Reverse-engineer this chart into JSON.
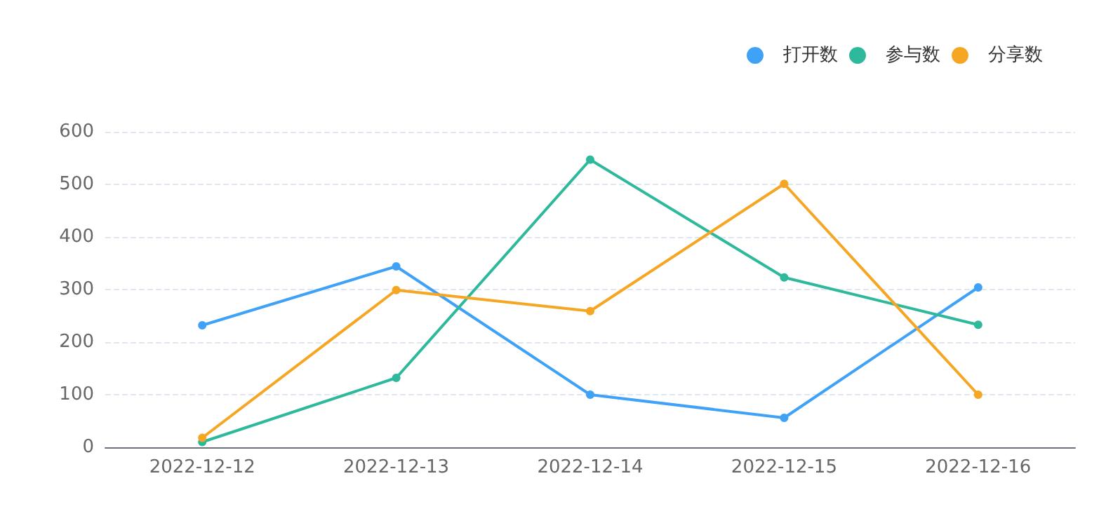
{
  "chart_data": {
    "type": "line",
    "categories": [
      "2022-12-12",
      "2022-12-13",
      "2022-12-14",
      "2022-12-15",
      "2022-12-16"
    ],
    "series": [
      {
        "name": "打开数",
        "color": "#3fa2f7",
        "values": [
          232,
          344,
          100,
          56,
          304
        ]
      },
      {
        "name": "参与数",
        "color": "#2fb99c",
        "values": [
          10,
          132,
          547,
          323,
          233
        ]
      },
      {
        "name": "分享数",
        "color": "#f5a623",
        "values": [
          18,
          299,
          259,
          501,
          100
        ]
      }
    ],
    "ylim": [
      0,
      600
    ],
    "yticks": [
      0,
      100,
      200,
      300,
      400,
      500,
      600
    ],
    "grid": "y",
    "legend": "top right",
    "marker": "circle",
    "line_style": "solid"
  }
}
